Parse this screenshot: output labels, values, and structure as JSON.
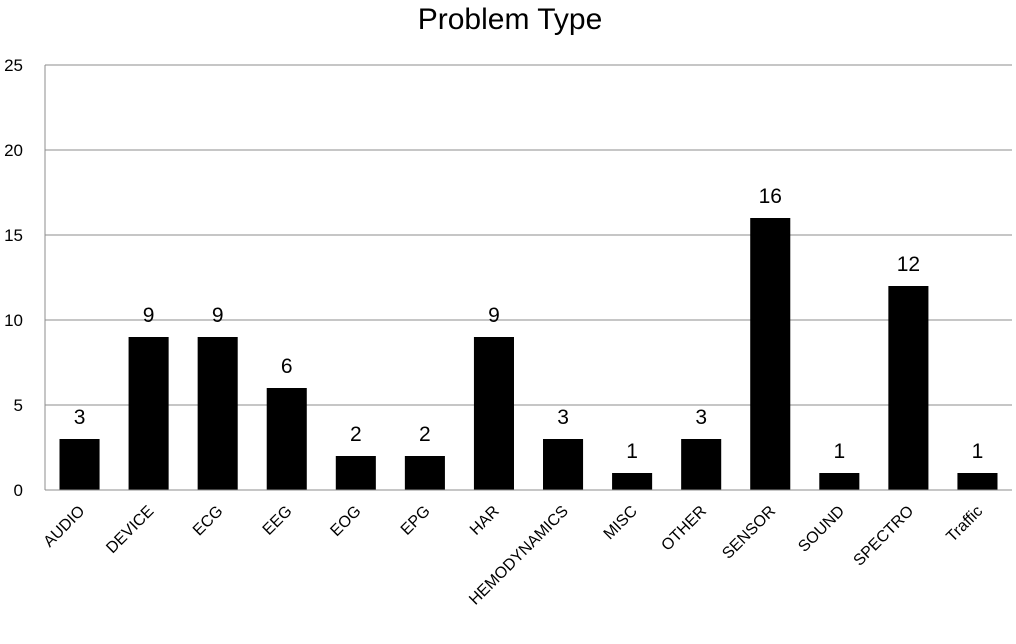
{
  "chart_data": {
    "type": "bar",
    "title": "Problem Type",
    "xlabel": "",
    "ylabel": "",
    "ylim": [
      0,
      25
    ],
    "yticks": [
      0,
      5,
      10,
      15,
      20,
      25
    ],
    "grid": true,
    "legend": "none",
    "bar_color": "#000000",
    "categories": [
      "AUDIO",
      "DEVICE",
      "ECG",
      "EEG",
      "EOG",
      "EPG",
      "HAR",
      "HEMODYNAMICS",
      "MISC",
      "OTHER",
      "SENSOR",
      "SOUND",
      "SPECTRO",
      "Traffic"
    ],
    "values": [
      3,
      9,
      9,
      6,
      2,
      2,
      9,
      3,
      1,
      3,
      16,
      1,
      12,
      1
    ]
  }
}
